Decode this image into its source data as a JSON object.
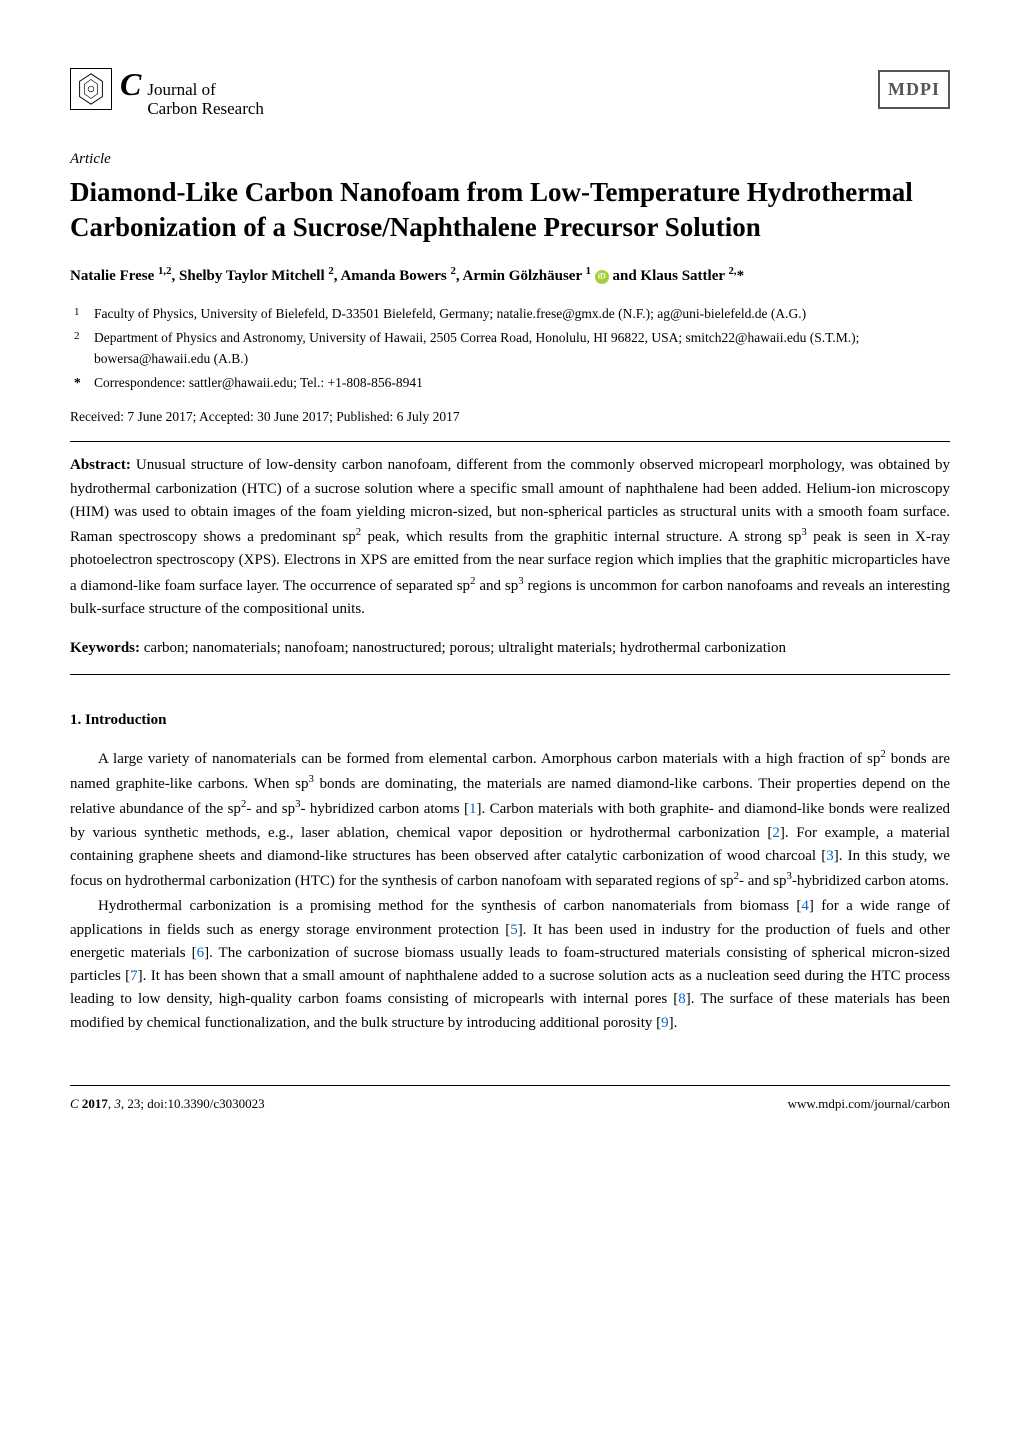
{
  "header": {
    "journal_c": "C",
    "journal_line1": "Journal of",
    "journal_line2": "Carbon Research",
    "publisher_logo": "MDPI"
  },
  "article": {
    "type": "Article",
    "title_html": "Diamond-Like Carbon Nanofoam from Low-Temperature Hydrothermal Carbonization of a Sucrose/Naphthalene Precursor Solution",
    "authors_html": "Natalie Frese <sup>1,2</sup>, Shelby Taylor Mitchell <sup>2</sup>, Amanda Bowers <sup>2</sup>, Armin Gölzhäuser <sup>1</sup> <span class=\"orcid-icon\" data-name=\"orcid-icon\" data-interactable=\"false\"></span> and Klaus Sattler <sup>2,</sup>*"
  },
  "affiliations": [
    {
      "num": "1",
      "text": "Faculty of Physics, University of Bielefeld, D-33501 Bielefeld, Germany; natalie.frese@gmx.de (N.F.); ag@uni-bielefeld.de (A.G.)"
    },
    {
      "num": "2",
      "text": "Department of Physics and Astronomy, University of Hawaii, 2505 Correa Road, Honolulu, HI 96822, USA; smitch22@hawaii.edu (S.T.M.); bowersa@hawaii.edu (A.B.)"
    }
  ],
  "correspondence": {
    "star": "*",
    "text": "Correspondence: sattler@hawaii.edu; Tel.: +1-808-856-8941"
  },
  "dates": "Received: 7 June 2017; Accepted: 30 June 2017; Published: 6 July 2017",
  "abstract": {
    "label": "Abstract:",
    "text_html": "Unusual structure of low-density carbon nanofoam, different from the commonly observed micropearl morphology, was obtained by hydrothermal carbonization (HTC) of a sucrose solution where a specific small amount of naphthalene had been added. Helium-ion microscopy (HIM) was used to obtain images of the foam yielding micron-sized, but non-spherical particles as structural units with a smooth foam surface. Raman spectroscopy shows a predominant sp<sup>2</sup> peak, which results from the graphitic internal structure. A strong sp<sup>3</sup> peak is seen in X-ray photoelectron spectroscopy (XPS). Electrons in XPS are emitted from the near surface region which implies that the graphitic microparticles have a diamond-like foam surface layer. The occurrence of separated sp<sup>2</sup> and sp<sup>3</sup> regions is uncommon for carbon nanofoams and reveals an interesting bulk-surface structure of the compositional units."
  },
  "keywords": {
    "label": "Keywords:",
    "text": "carbon; nanomaterials; nanofoam; nanostructured; porous; ultralight materials; hydrothermal carbonization"
  },
  "sections": {
    "intro_heading": "1. Introduction",
    "para1_html": "A large variety of nanomaterials can be formed from elemental carbon. Amorphous carbon materials with a high fraction of sp<sup>2</sup> bonds are named graphite-like carbons. When sp<sup>3</sup> bonds are dominating, the materials are named diamond-like carbons. Their properties depend on the relative abundance of the sp<sup>2</sup>- and sp<sup>3</sup>- hybridized carbon atoms [<span class=\"ref-link\">1</span>]. Carbon materials with both graphite- and diamond-like bonds were realized by various synthetic methods, e.g., laser ablation, chemical vapor deposition or hydrothermal carbonization [<span class=\"ref-link\">2</span>]. For example, a material containing graphene sheets and diamond-like structures has been observed after catalytic carbonization of wood charcoal [<span class=\"ref-link\">3</span>]. In this study, we focus on hydrothermal carbonization (HTC) for the synthesis of carbon nanofoam with separated regions of sp<sup>2</sup>- and sp<sup>3</sup>-hybridized carbon atoms.",
    "para2_html": "Hydrothermal carbonization is a promising method for the synthesis of carbon nanomaterials from biomass [<span class=\"ref-link\">4</span>] for a wide range of applications in fields such as energy storage environment protection [<span class=\"ref-link\">5</span>]. It has been used in industry for the production of fuels and other energetic materials [<span class=\"ref-link\">6</span>]. The carbonization of sucrose biomass usually leads to foam-structured materials consisting of spherical micron-sized particles [<span class=\"ref-link\">7</span>]. It has been shown that a small amount of naphthalene added to a sucrose solution acts as a nucleation seed during the HTC process leading to low density, high-quality carbon foams consisting of micropearls with internal pores [<span class=\"ref-link\">8</span>]. The surface of these materials has been modified by chemical functionalization, and the bulk structure by introducing additional porosity [<span class=\"ref-link\">9</span>]."
  },
  "footer": {
    "left_html": "<i>C</i> <b>2017</b>, <i>3</i>, 23; doi:10.3390/c3030023",
    "right": "www.mdpi.com/journal/carbon"
  },
  "colors": {
    "ref_link": "#0066cc",
    "orcid": "#a6ce39",
    "text": "#000000",
    "bg": "#ffffff"
  },
  "typography": {
    "body_fontsize": 15,
    "title_fontsize": 27,
    "footer_fontsize": 13,
    "aff_fontsize": 13.5
  }
}
